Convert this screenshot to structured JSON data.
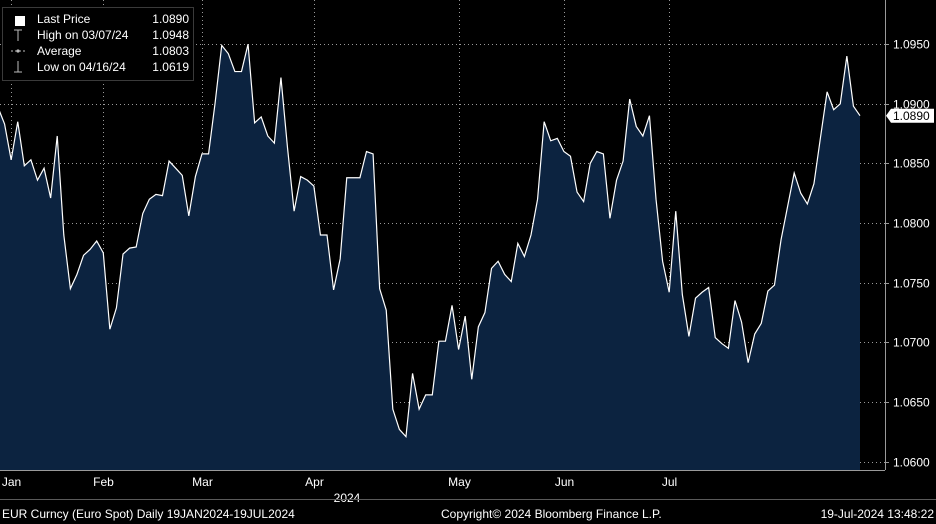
{
  "chart_data": {
    "type": "area",
    "ylim": [
      1.0593,
      1.0987
    ],
    "y_ticks": [
      "1.0950",
      "1.0900",
      "1.0850",
      "1.0800",
      "1.0750",
      "1.0700",
      "1.0650",
      "1.0600"
    ],
    "y_tick_values": [
      1.095,
      1.09,
      1.085,
      1.08,
      1.075,
      1.07,
      1.065,
      1.06
    ],
    "x_ticks": [
      "Jan",
      "Feb",
      "Mar",
      "Apr",
      "May",
      "Jun",
      "Jul"
    ],
    "x_tick_index": [
      2,
      16,
      31,
      48,
      70,
      86,
      102
    ],
    "x_year_label": "2024",
    "x_year_index": 53,
    "last_price_tag": "1.0890",
    "colors": {
      "line": "#ffffff",
      "fill": "#0c2340",
      "grid": "#9a9a9a",
      "background": "#000000"
    },
    "series": [
      {
        "values": [
          1.0897,
          1.0883,
          1.0853,
          1.0885,
          1.0848,
          1.0853,
          1.0836,
          1.0846,
          1.0821,
          1.0873,
          1.079,
          1.0745,
          1.0757,
          1.0773,
          1.0778,
          1.0785,
          1.0775,
          1.0711,
          1.0729,
          1.0774,
          1.0779,
          1.078,
          1.0808,
          1.082,
          1.0824,
          1.0823,
          1.0852,
          1.0846,
          1.084,
          1.0806,
          1.0839,
          1.0858,
          1.0858,
          1.0901,
          1.0949,
          1.0942,
          1.0927,
          1.0927,
          1.095,
          1.0884,
          1.0889,
          1.0873,
          1.0867,
          1.0922,
          1.0863,
          1.081,
          1.0839,
          1.0836,
          1.0831,
          1.079,
          1.079,
          1.0744,
          1.077,
          1.0838,
          1.0838,
          1.0838,
          1.086,
          1.0858,
          1.0745,
          1.0727,
          1.0644,
          1.0627,
          1.0621,
          1.0674,
          1.0644,
          1.0656,
          1.0656,
          1.0701,
          1.0701,
          1.0731,
          1.0694,
          1.0722,
          1.0669,
          1.0713,
          1.0725,
          1.0762,
          1.0768,
          1.0757,
          1.0751,
          1.0783,
          1.0772,
          1.079,
          1.082,
          1.0885,
          1.0869,
          1.0871,
          1.086,
          1.0856,
          1.0826,
          1.0818,
          1.085,
          1.086,
          1.0858,
          1.0804,
          1.0836,
          1.0852,
          1.0904,
          1.0881,
          1.0873,
          1.089,
          1.082,
          1.0768,
          1.0742,
          1.081,
          1.074,
          1.0705,
          1.0737,
          1.0742,
          1.0746,
          1.0704,
          1.0699,
          1.0695,
          1.0735,
          1.0717,
          1.0683,
          1.0707,
          1.0716,
          1.0743,
          1.0748,
          1.0786,
          1.0814,
          1.0842,
          1.0825,
          1.0816,
          1.0833,
          1.0872,
          1.091,
          1.0895,
          1.09,
          1.094,
          1.0898,
          1.089
        ]
      }
    ]
  },
  "legend": {
    "last_price_label": "Last Price",
    "last_price_value": "1.0890",
    "high_label": "High on 03/07/24",
    "high_value": "1.0948",
    "average_label": "Average",
    "average_value": "1.0803",
    "low_label": "Low on 04/16/24",
    "low_value": "1.0619"
  },
  "footer": {
    "left": "EUR Curncy (Euro Spot)  Daily 19JAN2024-19JUL2024",
    "center": "Copyright© 2024 Bloomberg Finance L.P.",
    "right": "19-Jul-2024 13:48:22"
  }
}
